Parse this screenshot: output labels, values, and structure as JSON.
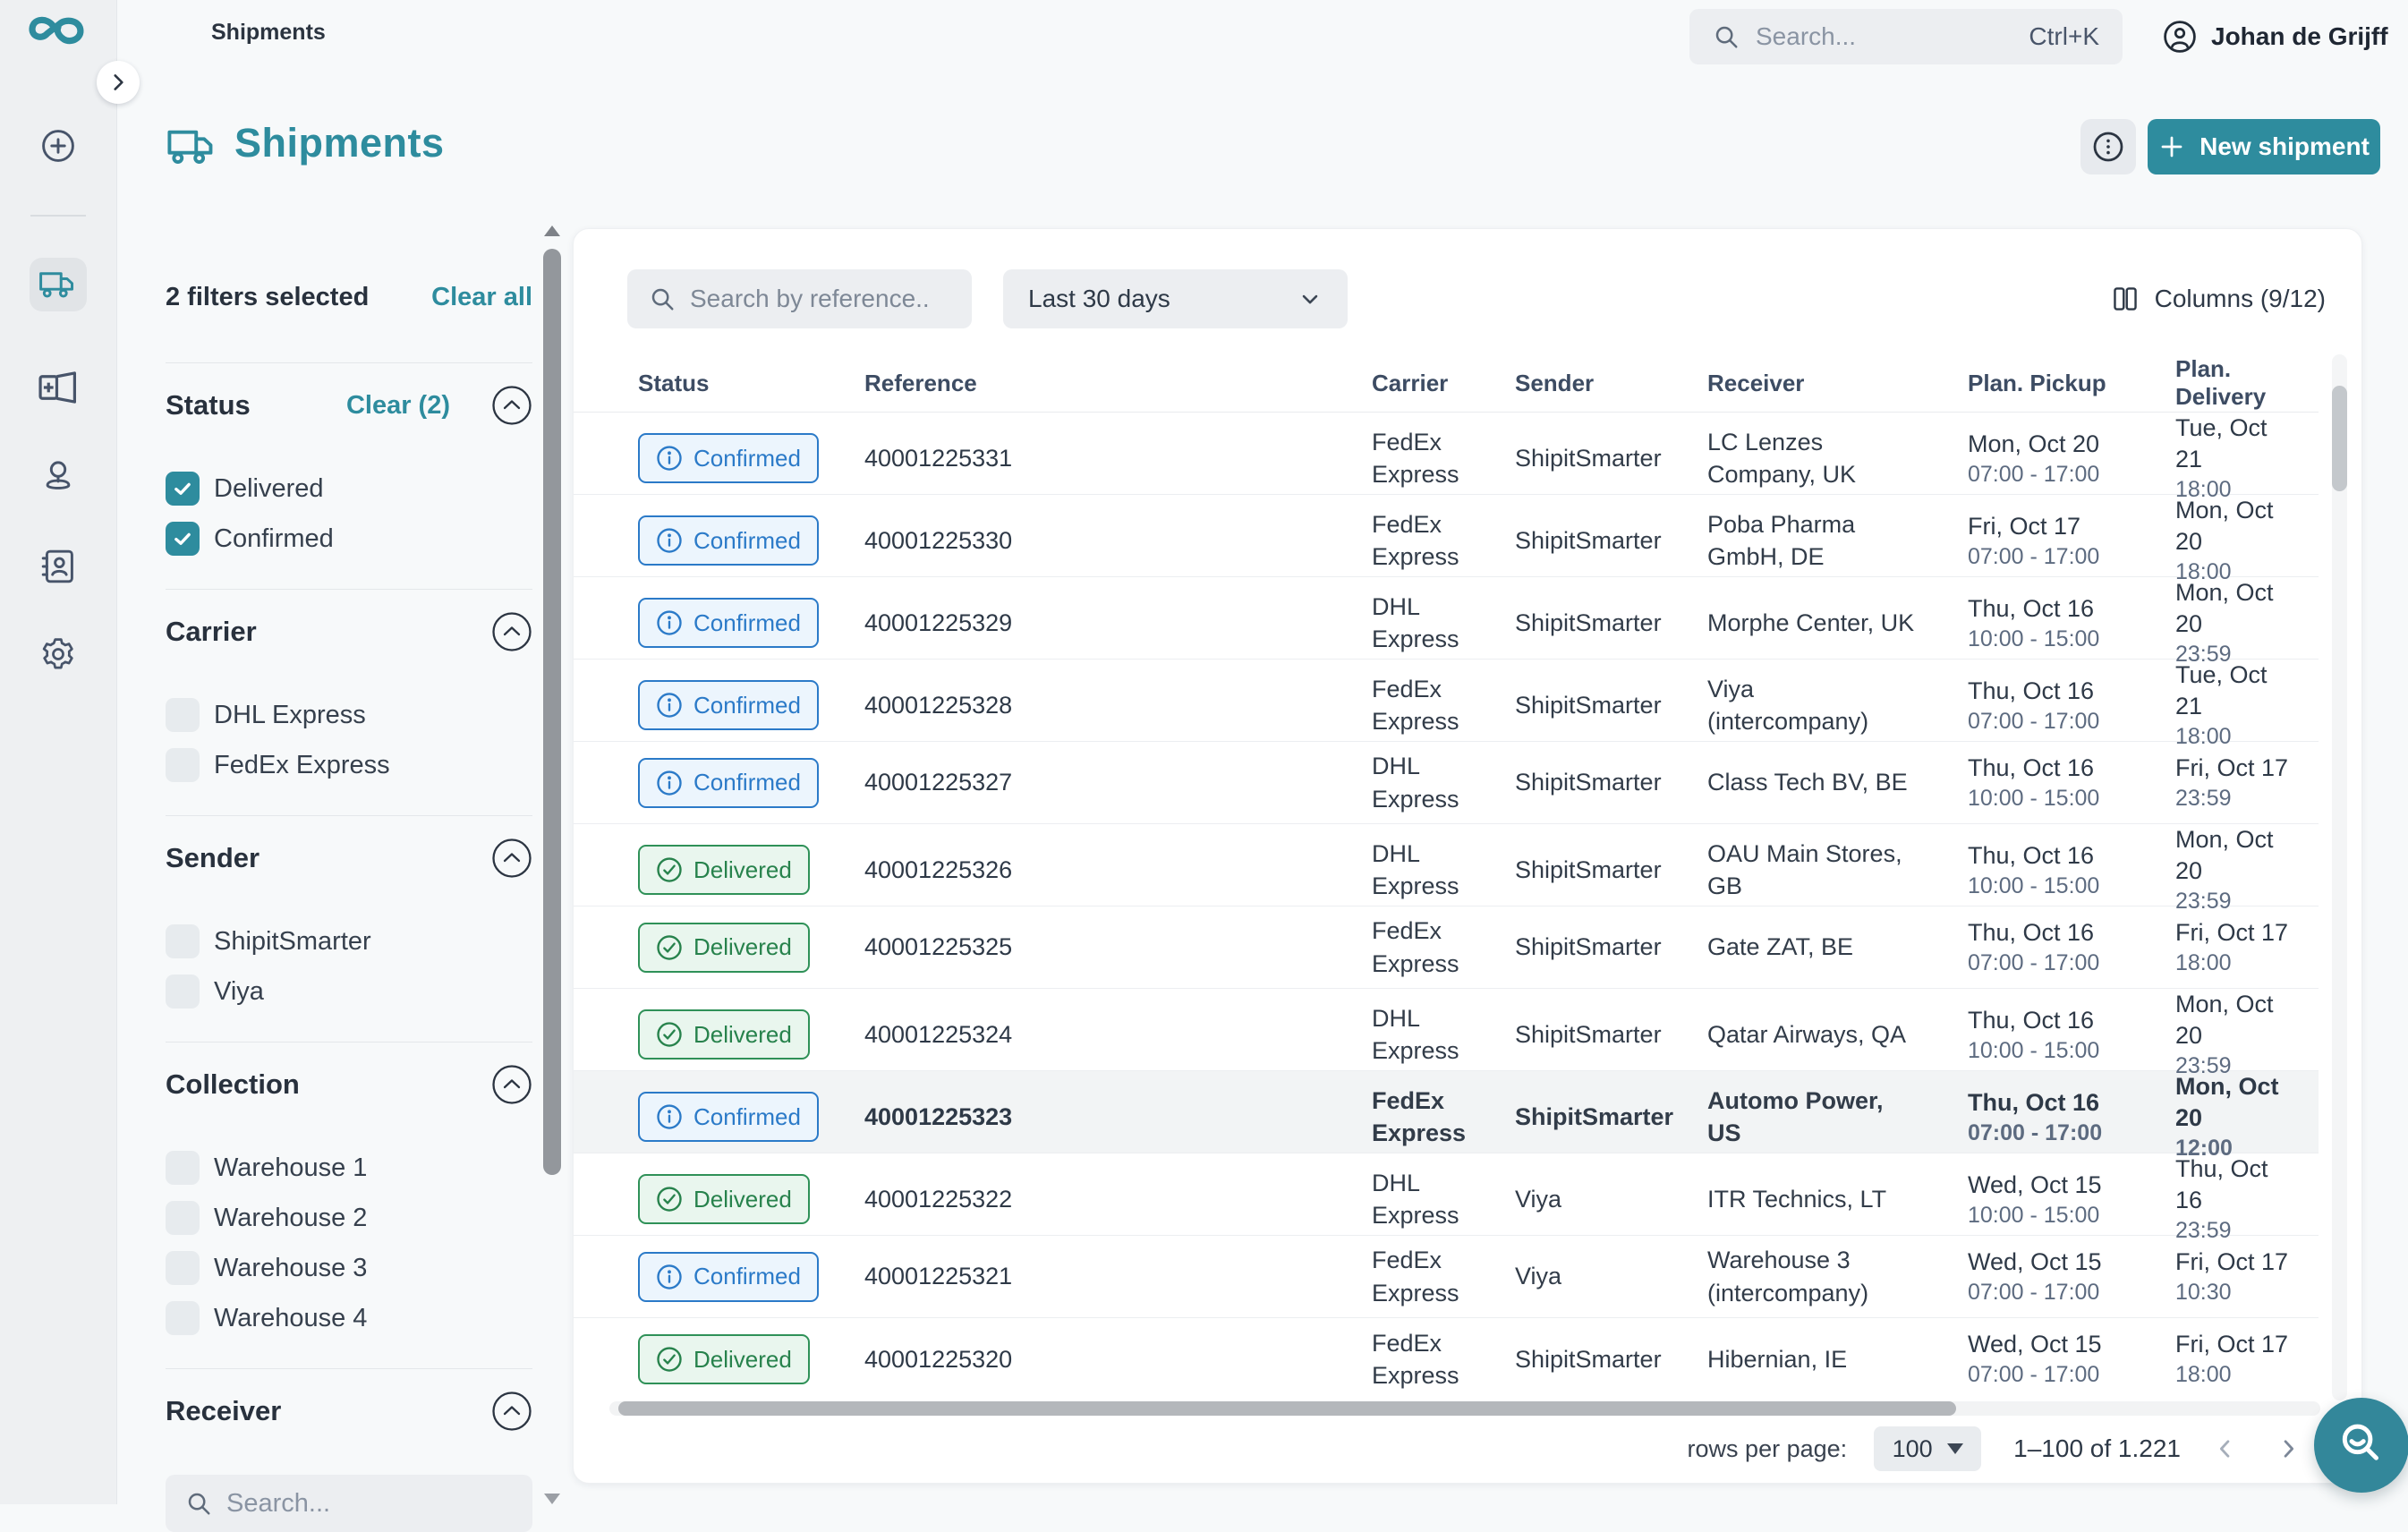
{
  "brand": {
    "teal": "#2e8c9e",
    "confirmed_blue": "#2b7ac8",
    "delivered_green": "#2f9158"
  },
  "topbar": {
    "breadcrumb": "Shipments",
    "search_placeholder": "Search...",
    "search_shortcut": "Ctrl+K",
    "user_name": "Johan de Grijff"
  },
  "header": {
    "title": "Shipments",
    "new_shipment_label": "New shipment"
  },
  "filters": {
    "summary": "2 filters selected",
    "clear_all_label": "Clear all",
    "sections": [
      {
        "title": "Status",
        "clear_label": "Clear (2)",
        "options": [
          {
            "label": "Delivered",
            "checked": true
          },
          {
            "label": "Confirmed",
            "checked": true
          }
        ]
      },
      {
        "title": "Carrier",
        "options": [
          {
            "label": "DHL Express",
            "checked": false
          },
          {
            "label": "FedEx Express",
            "checked": false
          }
        ]
      },
      {
        "title": "Sender",
        "options": [
          {
            "label": "ShipitSmarter",
            "checked": false
          },
          {
            "label": "Viya",
            "checked": false
          }
        ]
      },
      {
        "title": "Collection",
        "options": [
          {
            "label": "Warehouse 1",
            "checked": false
          },
          {
            "label": "Warehouse 2",
            "checked": false
          },
          {
            "label": "Warehouse 3",
            "checked": false
          },
          {
            "label": "Warehouse 4",
            "checked": false
          }
        ]
      },
      {
        "title": "Receiver",
        "search_placeholder": "Search..."
      }
    ]
  },
  "toolbar": {
    "search_placeholder": "Search by reference..",
    "date_range_value": "Last 30 days",
    "columns_label": "Columns (9/12)"
  },
  "table": {
    "headers": [
      "Status",
      "Reference",
      "Carrier",
      "Sender",
      "Receiver",
      "Plan. Pickup",
      "Plan. Delivery"
    ],
    "rows": [
      {
        "status": "Confirmed",
        "reference": "40001225331",
        "carrier": "FedEx Express",
        "sender": "ShipitSmarter",
        "receiver": "LC Lenzes Company, UK",
        "pickup_date": "Mon, Oct 20",
        "pickup_time": "07:00 - 17:00",
        "delivery_date": "Tue, Oct 21",
        "delivery_time": "18:00",
        "highlighted": false
      },
      {
        "status": "Confirmed",
        "reference": "40001225330",
        "carrier": "FedEx Express",
        "sender": "ShipitSmarter",
        "receiver": "Poba Pharma GmbH, DE",
        "pickup_date": "Fri, Oct 17",
        "pickup_time": "07:00 - 17:00",
        "delivery_date": "Mon, Oct 20",
        "delivery_time": "18:00",
        "highlighted": false
      },
      {
        "status": "Confirmed",
        "reference": "40001225329",
        "carrier": "DHL Express",
        "sender": "ShipitSmarter",
        "receiver": "Morphe Center, UK",
        "pickup_date": "Thu, Oct 16",
        "pickup_time": "10:00 - 15:00",
        "delivery_date": "Mon, Oct 20",
        "delivery_time": "23:59",
        "highlighted": false
      },
      {
        "status": "Confirmed",
        "reference": "40001225328",
        "carrier": "FedEx Express",
        "sender": "ShipitSmarter",
        "receiver": "Viya (intercompany)",
        "pickup_date": "Thu, Oct 16",
        "pickup_time": "07:00 - 17:00",
        "delivery_date": "Tue, Oct 21",
        "delivery_time": "18:00",
        "highlighted": false
      },
      {
        "status": "Confirmed",
        "reference": "40001225327",
        "carrier": "DHL Express",
        "sender": "ShipitSmarter",
        "receiver": "Class Tech BV, BE",
        "pickup_date": "Thu, Oct 16",
        "pickup_time": "10:00 - 15:00",
        "delivery_date": "Fri, Oct 17",
        "delivery_time": "23:59",
        "highlighted": false
      },
      {
        "status": "Delivered",
        "reference": "40001225326",
        "carrier": "DHL Express",
        "sender": "ShipitSmarter",
        "receiver": "OAU Main Stores, GB",
        "pickup_date": "Thu, Oct 16",
        "pickup_time": "10:00 - 15:00",
        "delivery_date": "Mon, Oct 20",
        "delivery_time": "23:59",
        "highlighted": false
      },
      {
        "status": "Delivered",
        "reference": "40001225325",
        "carrier": "FedEx Express",
        "sender": "ShipitSmarter",
        "receiver": "Gate ZAT, BE",
        "pickup_date": "Thu, Oct 16",
        "pickup_time": "07:00 - 17:00",
        "delivery_date": "Fri, Oct 17",
        "delivery_time": "18:00",
        "highlighted": false
      },
      {
        "status": "Delivered",
        "reference": "40001225324",
        "carrier": "DHL Express",
        "sender": "ShipitSmarter",
        "receiver": "Qatar Airways, QA",
        "pickup_date": "Thu, Oct 16",
        "pickup_time": "10:00 - 15:00",
        "delivery_date": "Mon, Oct 20",
        "delivery_time": "23:59",
        "highlighted": false
      },
      {
        "status": "Confirmed",
        "reference": "40001225323",
        "carrier": "FedEx Express",
        "sender": "ShipitSmarter",
        "receiver": "Automo Power, US",
        "pickup_date": "Thu, Oct 16",
        "pickup_time": "07:00 - 17:00",
        "delivery_date": "Mon, Oct 20",
        "delivery_time": "12:00",
        "highlighted": true
      },
      {
        "status": "Delivered",
        "reference": "40001225322",
        "carrier": "DHL Express",
        "sender": "Viya",
        "receiver": "ITR Technics, LT",
        "pickup_date": "Wed, Oct 15",
        "pickup_time": "10:00 - 15:00",
        "delivery_date": "Thu, Oct 16",
        "delivery_time": "23:59",
        "highlighted": false
      },
      {
        "status": "Confirmed",
        "reference": "40001225321",
        "carrier": "FedEx Express",
        "sender": "Viya",
        "receiver": "Warehouse 3 (intercompany)",
        "pickup_date": "Wed, Oct 15",
        "pickup_time": "07:00 - 17:00",
        "delivery_date": "Fri, Oct 17",
        "delivery_time": "10:30",
        "highlighted": false
      },
      {
        "status": "Delivered",
        "reference": "40001225320",
        "carrier": "FedEx Express",
        "sender": "ShipitSmarter",
        "receiver": "Hibernian, IE",
        "pickup_date": "Wed, Oct 15",
        "pickup_time": "07:00 - 17:00",
        "delivery_date": "Fri, Oct 17",
        "delivery_time": "18:00",
        "highlighted": false
      }
    ]
  },
  "footer": {
    "rows_per_page_label": "rows per page:",
    "rows_per_page_value": "100",
    "range": "1–100 of 1.221"
  }
}
